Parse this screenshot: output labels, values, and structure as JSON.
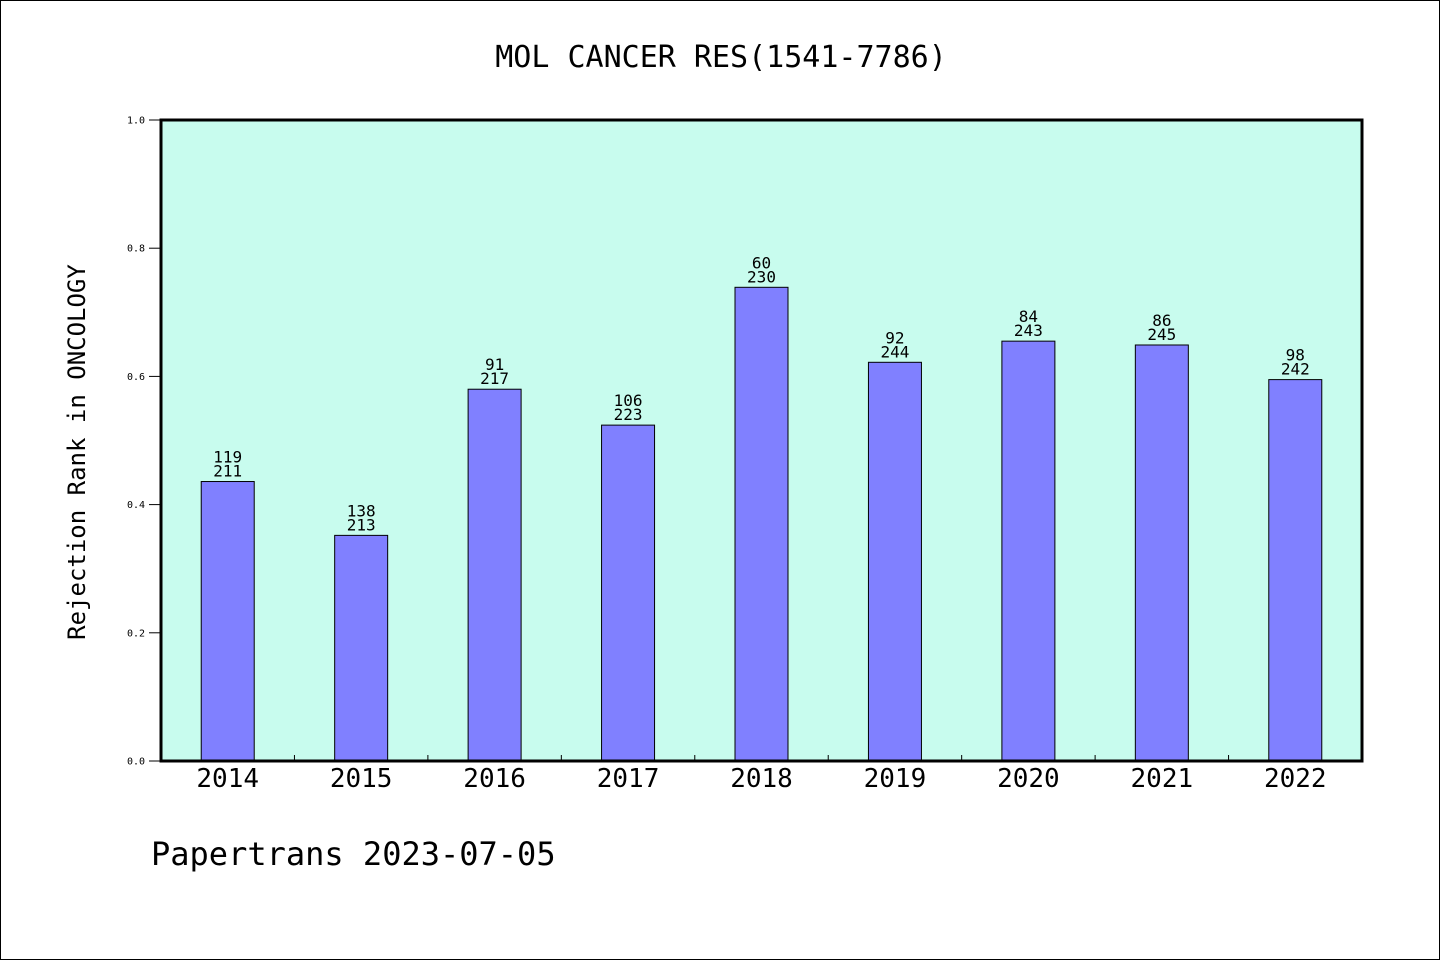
{
  "chart_data": {
    "type": "bar",
    "title": "MOL CANCER RES(1541-7786)",
    "ylabel": "Rejection Rank in ONCOLOGY",
    "xlabel": "",
    "footer": "Papertrans 2023-07-05",
    "categories": [
      "2014",
      "2015",
      "2016",
      "2017",
      "2018",
      "2019",
      "2020",
      "2021",
      "2022"
    ],
    "values": [
      0.436,
      0.352,
      0.58,
      0.524,
      0.739,
      0.622,
      0.655,
      0.649,
      0.595
    ],
    "rank_labels": [
      "119",
      "138",
      "91",
      "106",
      "60",
      "92",
      "84",
      "86",
      "98"
    ],
    "total_labels": [
      "211",
      "213",
      "217",
      "223",
      "230",
      "244",
      "243",
      "245",
      "242"
    ],
    "ylim": [
      0.0,
      1.0
    ],
    "yticks": [
      "0.0",
      "0.2",
      "0.4",
      "0.6",
      "0.8",
      "1.0"
    ],
    "grid": false,
    "colors": {
      "plot_background": "#c8fcee",
      "bar_fill": "#8080ff",
      "bar_stroke": "#000000",
      "axis": "#000000"
    }
  }
}
